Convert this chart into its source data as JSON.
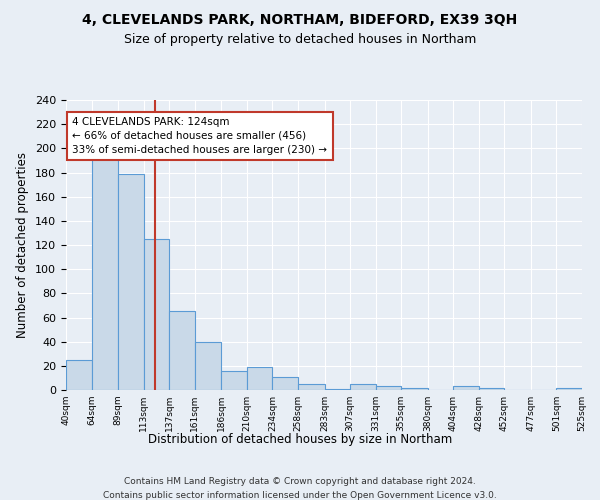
{
  "title": "4, CLEVELANDS PARK, NORTHAM, BIDEFORD, EX39 3QH",
  "subtitle": "Size of property relative to detached houses in Northam",
  "xlabel": "Distribution of detached houses by size in Northam",
  "ylabel": "Number of detached properties",
  "bar_edges": [
    40,
    64,
    89,
    113,
    137,
    161,
    186,
    210,
    234,
    258,
    283,
    307,
    331,
    355,
    380,
    404,
    428,
    452,
    477,
    501,
    525
  ],
  "bar_heights": [
    25,
    193,
    179,
    125,
    65,
    40,
    16,
    19,
    11,
    5,
    1,
    5,
    3,
    2,
    0,
    3,
    2,
    0,
    0,
    2
  ],
  "bar_color": "#c9d9e8",
  "bar_edgecolor": "#5b9bd5",
  "property_size": 124,
  "vline_color": "#c0392b",
  "annotation_line1": "4 CLEVELANDS PARK: 124sqm",
  "annotation_line2": "← 66% of detached houses are smaller (456)",
  "annotation_line3": "33% of semi-detached houses are larger (230) →",
  "annotation_box_edgecolor": "#c0392b",
  "background_color": "#e8eef5",
  "plot_background": "#e8eef5",
  "footer_line1": "Contains HM Land Registry data © Crown copyright and database right 2024.",
  "footer_line2": "Contains public sector information licensed under the Open Government Licence v3.0.",
  "tick_labels": [
    "40sqm",
    "64sqm",
    "89sqm",
    "113sqm",
    "137sqm",
    "161sqm",
    "186sqm",
    "210sqm",
    "234sqm",
    "258sqm",
    "283sqm",
    "307sqm",
    "331sqm",
    "355sqm",
    "380sqm",
    "404sqm",
    "428sqm",
    "452sqm",
    "477sqm",
    "501sqm",
    "525sqm"
  ],
  "ylim": [
    0,
    240
  ],
  "yticks": [
    0,
    20,
    40,
    60,
    80,
    100,
    120,
    140,
    160,
    180,
    200,
    220,
    240
  ],
  "title_fontsize": 10,
  "subtitle_fontsize": 9
}
